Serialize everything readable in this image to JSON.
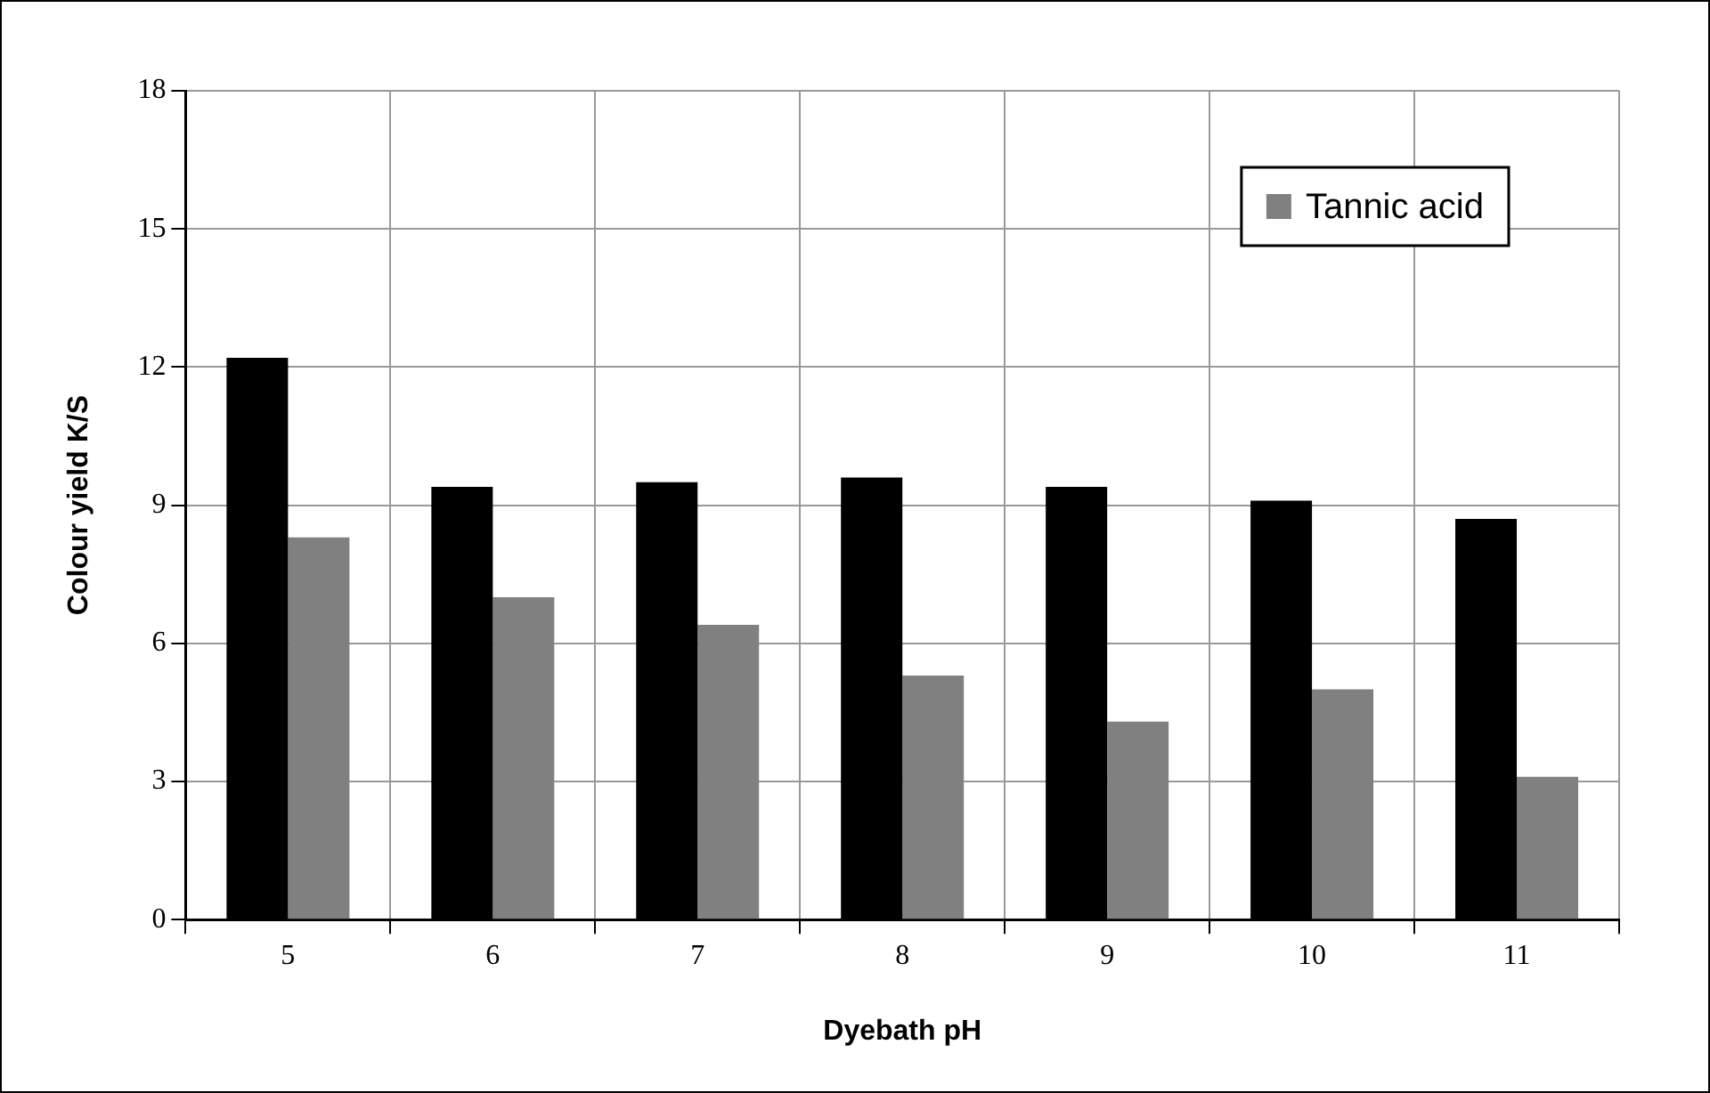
{
  "chart_data": {
    "type": "bar",
    "xlabel": "Dyebath pH",
    "ylabel": "Colour yield K/S",
    "categories": [
      "5",
      "6",
      "7",
      "8",
      "9",
      "10",
      "11"
    ],
    "series": [
      {
        "color": "#000000",
        "values": [
          12.2,
          9.4,
          9.5,
          9.6,
          9.4,
          9.1,
          8.7
        ]
      },
      {
        "name": "Tannic acid",
        "color": "#808080",
        "values": [
          8.3,
          7.0,
          6.4,
          5.3,
          4.3,
          5.0,
          3.1
        ]
      }
    ],
    "ylim": [
      0,
      18
    ],
    "yticks": [
      0,
      3,
      6,
      9,
      12,
      15,
      18
    ],
    "grid": true,
    "legend": "top right"
  }
}
